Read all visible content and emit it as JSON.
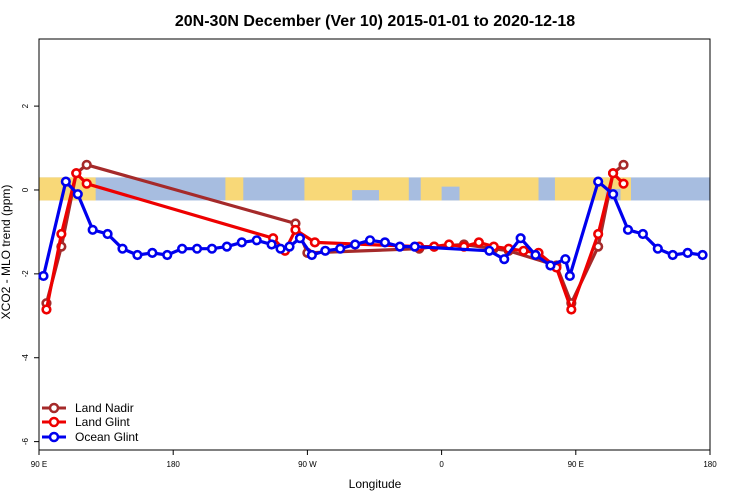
{
  "chart_data": {
    "type": "line",
    "title": "20N-30N December (Ver 10)   2015-01-01 to 2020-12-18",
    "xlabel": "Longitude",
    "ylabel": "XCO2 - MLO trend (ppm)",
    "xlim": [
      90,
      540
    ],
    "ylim": [
      -6.2,
      3.6
    ],
    "x_ticks": [
      {
        "value": 90,
        "label": "90 E"
      },
      {
        "value": 180,
        "label": "180"
      },
      {
        "value": 270,
        "label": "90 W"
      },
      {
        "value": 360,
        "label": "0"
      },
      {
        "value": 450,
        "label": "90 E"
      },
      {
        "value": 540,
        "label": "180"
      }
    ],
    "y_ticks": [
      {
        "value": 2,
        "label": "2"
      },
      {
        "value": 0,
        "label": "0"
      },
      {
        "value": -2,
        "label": "-2"
      },
      {
        "value": -4,
        "label": "-4"
      },
      {
        "value": -6,
        "label": "-6"
      }
    ],
    "map_band": {
      "ymin": -0.25,
      "ymax": 0.3,
      "ocean_color": "#a7bde0",
      "land_color": "#f8d878"
    },
    "legend_position": "bottom-left",
    "series": [
      {
        "name": "Land Nadir",
        "color": "#a52a2a",
        "points": [
          [
            95,
            -2.7
          ],
          [
            105,
            -1.35
          ],
          [
            115,
            0.4
          ],
          [
            122,
            0.6
          ],
          [
            262,
            -0.8
          ],
          [
            270,
            -1.5
          ],
          [
            345,
            -1.4
          ],
          [
            355,
            -1.35
          ],
          [
            375,
            -1.3
          ],
          [
            395,
            -1.4
          ],
          [
            405,
            -1.45
          ],
          [
            437,
            -1.8
          ],
          [
            447,
            -2.7
          ],
          [
            465,
            -1.35
          ],
          [
            475,
            0.4
          ],
          [
            482,
            0.6
          ]
        ]
      },
      {
        "name": "Land Glint",
        "color": "#ee0000",
        "points": [
          [
            95,
            -2.85
          ],
          [
            105,
            -1.05
          ],
          [
            115,
            0.4
          ],
          [
            122,
            0.15
          ],
          [
            247,
            -1.15
          ],
          [
            255,
            -1.45
          ],
          [
            262,
            -0.95
          ],
          [
            275,
            -1.25
          ],
          [
            345,
            -1.35
          ],
          [
            355,
            -1.35
          ],
          [
            365,
            -1.3
          ],
          [
            375,
            -1.35
          ],
          [
            385,
            -1.25
          ],
          [
            395,
            -1.35
          ],
          [
            405,
            -1.4
          ],
          [
            415,
            -1.45
          ],
          [
            425,
            -1.5
          ],
          [
            437,
            -1.85
          ],
          [
            447,
            -2.85
          ],
          [
            465,
            -1.05
          ],
          [
            475,
            0.4
          ],
          [
            482,
            0.15
          ]
        ]
      },
      {
        "name": "Ocean Glint",
        "color": "#0000ee",
        "points": [
          [
            93,
            -2.05
          ],
          [
            108,
            0.2
          ],
          [
            116,
            -0.1
          ],
          [
            126,
            -0.95
          ],
          [
            136,
            -1.05
          ],
          [
            146,
            -1.4
          ],
          [
            156,
            -1.55
          ],
          [
            166,
            -1.5
          ],
          [
            176,
            -1.55
          ],
          [
            186,
            -1.4
          ],
          [
            196,
            -1.4
          ],
          [
            206,
            -1.4
          ],
          [
            216,
            -1.35
          ],
          [
            226,
            -1.25
          ],
          [
            236,
            -1.2
          ],
          [
            246,
            -1.3
          ],
          [
            252,
            -1.4
          ],
          [
            258,
            -1.35
          ],
          [
            265,
            -1.15
          ],
          [
            273,
            -1.55
          ],
          [
            282,
            -1.45
          ],
          [
            292,
            -1.4
          ],
          [
            302,
            -1.3
          ],
          [
            312,
            -1.2
          ],
          [
            322,
            -1.25
          ],
          [
            332,
            -1.35
          ],
          [
            342,
            -1.35
          ],
          [
            392,
            -1.45
          ],
          [
            402,
            -1.65
          ],
          [
            413,
            -1.15
          ],
          [
            423,
            -1.55
          ],
          [
            433,
            -1.8
          ],
          [
            443,
            -1.65
          ],
          [
            446,
            -2.05
          ],
          [
            465,
            0.2
          ],
          [
            475,
            -0.1
          ],
          [
            485,
            -0.95
          ],
          [
            495,
            -1.05
          ],
          [
            505,
            -1.4
          ],
          [
            515,
            -1.55
          ],
          [
            525,
            -1.5
          ],
          [
            535,
            -1.55
          ]
        ]
      }
    ]
  }
}
